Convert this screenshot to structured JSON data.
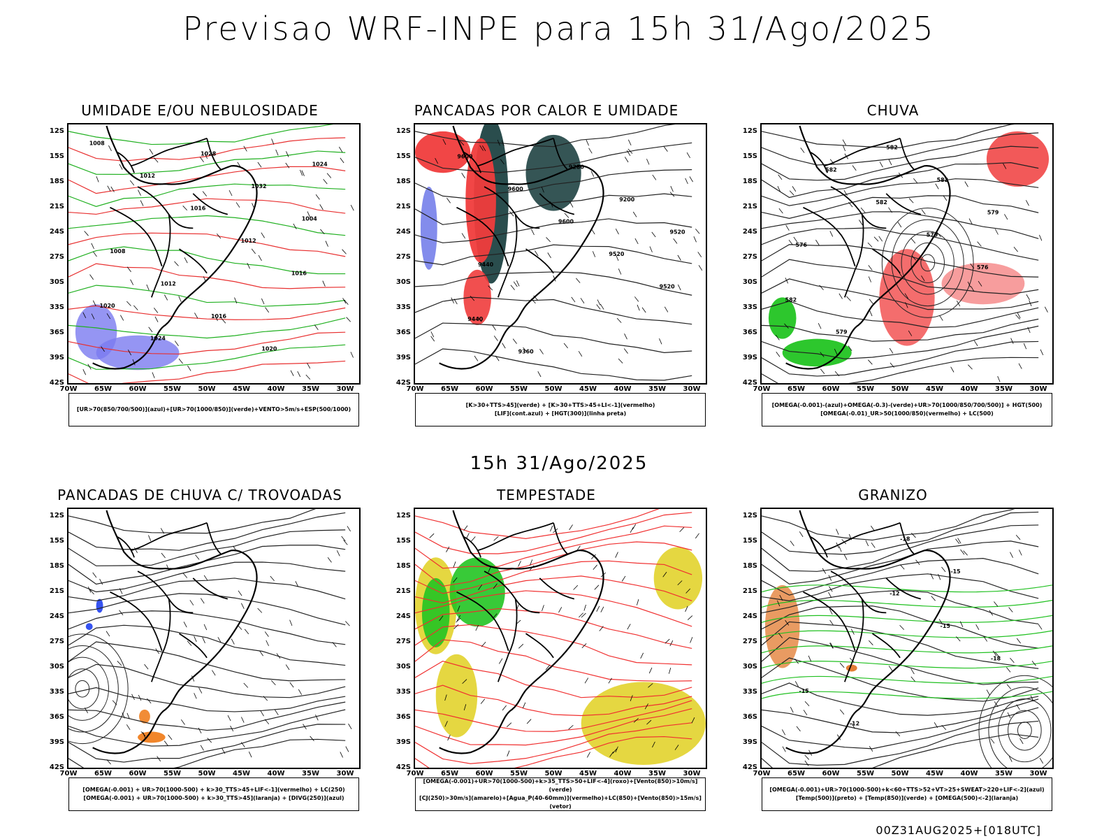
{
  "title": "Previsao WRF-INPE  para 15h 31/Ago/2025",
  "mid_date": "15h 31/Ago/2025",
  "footer": "00Z31AUG2025+[018UTC]",
  "axes": {
    "y_ticks": [
      "12S",
      "15S",
      "18S",
      "21S",
      "24S",
      "27S",
      "30S",
      "33S",
      "36S",
      "39S",
      "42S"
    ],
    "x_ticks": [
      "70W",
      "65W",
      "60W",
      "55W",
      "50W",
      "45W",
      "40W",
      "35W",
      "30W"
    ]
  },
  "panels": [
    {
      "title": "UMIDADE E/OU NEBULOSIDADE",
      "legend": [
        "[UR>70(850/700/500)](azul)+[UR>70(1000/850)](verde)+VENTO>5m/s+ESP(500/1000)"
      ],
      "contour_labels": [
        "1008",
        "1012",
        "1016",
        "1012",
        "1016",
        "1020",
        "1024",
        "1028",
        "1032",
        "1004",
        "1008",
        "1012",
        "1016",
        "1020",
        "1024"
      ],
      "colors": {
        "shade1": "#7b7bf0",
        "shade2": "#22c422",
        "lines": "#e83030"
      }
    },
    {
      "title": "PANCADAS POR CALOR E UMIDADE",
      "legend": [
        "[K>30+TTS>45](verde) + [K>30+TTS>45+LI<-1](vermelho)",
        "[LIF](cont.azul) + [HGT(300)](linha preta)"
      ],
      "contour_labels": [
        "9600",
        "9600",
        "9600",
        "9520",
        "9520",
        "9440",
        "9360",
        "9280",
        "9200",
        "9520",
        "9440"
      ],
      "colors": {
        "shade1": "#1f4343",
        "shade2": "#f03c3c",
        "lines": "#2030e0"
      }
    },
    {
      "title": "CHUVA",
      "legend": [
        "[OMEGA(-0.001)-(azul)+OMEGA(-0.3)-(verde)+UR>70(1000/850/700/500)] + HGT(500)",
        "[OMEGA(-0.01)_UR>50(1000/850)(vermelho) + LC(500)"
      ],
      "contour_labels": [
        "582",
        "582",
        "579",
        "576",
        "582",
        "579",
        "582",
        "582",
        "579",
        "576"
      ],
      "colors": {
        "shade1": "#f03c3c",
        "shade2": "#22c422",
        "lines": "#2040f0"
      }
    },
    {
      "title": "PANCADAS DE CHUVA C/ TROVOADAS",
      "legend": [
        "[OMEGA(-0.001) + UR>70(1000-500) + k>30_TTS>45+LIF<-1](vermelho) + LC(250)",
        "[OMEGA(-0.001) + UR>70(1000-500) + k>30_TTS>45](laranja) + [DIVG(250)](azul)"
      ],
      "contour_labels": [],
      "colors": {
        "shade1": "#f08020",
        "shade2": "#e83030",
        "lines": "#2040f0"
      }
    },
    {
      "title": "TEMPESTADE",
      "legend": [
        "[OMEGA(-0.001)+UR>70(1000-500)+k>35_TTS>50+LIF<-4](roxo)+[Vento(850)>10m/s](verde)",
        "[CJ(250)>30m/s](amarelo)+[Agua_P(40-60mm)](vermelho)+LC(850)+[Vento(850)>15m/s](vetor)"
      ],
      "contour_labels": [],
      "colors": {
        "shade1": "#e0d020",
        "shade2": "#22c422",
        "lines": "#f03030"
      }
    },
    {
      "title": "GRANIZO",
      "legend": [
        "[OMEGA(-0.001)+UR>70(1000-500)+k<60+TTS>52+VT>25+SWEAT>220+LIF<-2](azul)",
        "[Temp(500)](preto) + [Temp(850)](verde) + [OMEGA(500)<-2](laranja)"
      ],
      "contour_labels": [
        "-12",
        "-15",
        "-18",
        "-15",
        "-12",
        "-18",
        "-15"
      ],
      "colors": {
        "shade1": "#22c422",
        "shade2": "#e07020",
        "lines": "#000000"
      }
    }
  ]
}
